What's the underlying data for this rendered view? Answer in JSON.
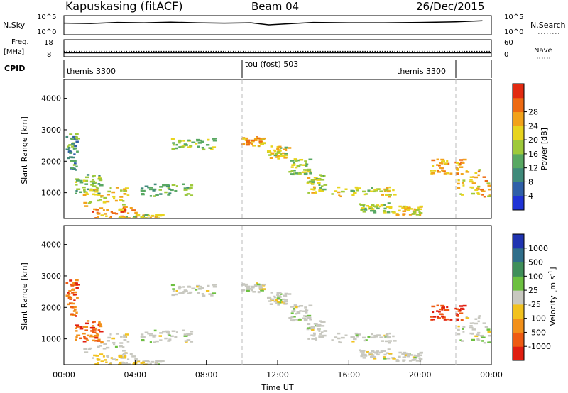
{
  "header": {
    "station": "Kapuskasing (fitACF)",
    "beam": "Beam 04",
    "date": "26/Dec/2015"
  },
  "noise_panel": {
    "left_label": "N.Sky",
    "left_top_tick": "10^5",
    "left_bottom_tick": "10^0",
    "right_top_tick": "10^5",
    "right_bottom_tick": "10^0",
    "right_label": "N.Search"
  },
  "freq_panel": {
    "left_label_1": "Freq.",
    "left_label_2": "[MHz]",
    "left_top_tick": "18",
    "left_bottom_tick": "8",
    "right_top_tick": "60",
    "right_bottom_tick": "0",
    "right_label": "Nave"
  },
  "cpid_panel": {
    "label": "CPID",
    "segments": [
      {
        "label": "themis 3300",
        "start_hour": 0.0
      },
      {
        "label": "tou (fost) 503",
        "start_hour": 10.0
      },
      {
        "label": "themis 3300",
        "start_hour": 22.0
      }
    ]
  },
  "range_panels": {
    "ylabel": "Slant Range [km]",
    "yticks": [
      "1000",
      "2000",
      "3000",
      "4000"
    ],
    "xticks": [
      "00:00",
      "04:00",
      "08:00",
      "12:00",
      "16:00",
      "20:00",
      "00:00"
    ],
    "xlabel": "Time UT"
  },
  "power_scale": {
    "label": "Power [dB]",
    "ticks": [
      "4",
      "8",
      "12",
      "16",
      "20",
      "24",
      "28"
    ],
    "colors": [
      "#1f33d6",
      "#2f5fa8",
      "#3f8a7a",
      "#58a862",
      "#9ec93a",
      "#e8d41e",
      "#f2a21a",
      "#ee6a12",
      "#e22a10"
    ]
  },
  "velocity_scale": {
    "label": "Velocity [m s^-1]",
    "ticks": [
      "1000",
      "500",
      "100",
      "25",
      "-25",
      "-100",
      "-500",
      "-1000"
    ],
    "colors": [
      "#1f33b0",
      "#2f6e8a",
      "#3f8f5a",
      "#6cc040",
      "#c8c8c0",
      "#f2c21e",
      "#f2901a",
      "#ee5a12",
      "#e01e10"
    ]
  },
  "chart_data": {
    "type": "heatmap",
    "x_unit": "hours UT",
    "xlim": [
      0,
      24
    ],
    "ylim": [
      180,
      4600
    ],
    "y_unit": "km",
    "noise_sky_series": {
      "x": [
        0.0,
        1.5,
        3.0,
        4.5,
        6.0,
        7.5,
        9.0,
        10.5,
        11.5,
        12.5,
        14.0,
        16.0,
        18.0,
        20.0,
        22.0,
        23.5
      ],
      "log_values": [
        3.2,
        3.1,
        3.4,
        3.3,
        3.5,
        3.3,
        3.2,
        3.3,
        2.7,
        3.0,
        3.4,
        3.3,
        3.3,
        3.4,
        3.6,
        3.9
      ]
    },
    "frequency_mhz": 10.4,
    "nave": 19,
    "power_blobs": [
      {
        "t0": 0.1,
        "t1": 0.7,
        "r0": 1600,
        "r1": 2900,
        "p": 10
      },
      {
        "t0": 0.6,
        "t1": 2.0,
        "r0": 1000,
        "r1": 1600,
        "p": 14
      },
      {
        "t0": 1.0,
        "t1": 3.7,
        "r0": 600,
        "r1": 1200,
        "p": 20
      },
      {
        "t0": 1.5,
        "t1": 4.0,
        "r0": 200,
        "r1": 600,
        "p": 26
      },
      {
        "t0": 3.0,
        "t1": 5.5,
        "r0": 180,
        "r1": 340,
        "p": 18
      },
      {
        "t0": 4.2,
        "t1": 7.2,
        "r0": 900,
        "r1": 1300,
        "p": 12
      },
      {
        "t0": 6.0,
        "t1": 8.4,
        "r0": 2400,
        "r1": 2750,
        "p": 16
      },
      {
        "t0": 9.8,
        "t1": 11.2,
        "r0": 2500,
        "r1": 2800,
        "p": 22
      },
      {
        "t0": 11.4,
        "t1": 12.6,
        "r0": 2100,
        "r1": 2500,
        "p": 18
      },
      {
        "t0": 12.6,
        "t1": 13.8,
        "r0": 1600,
        "r1": 2100,
        "p": 16
      },
      {
        "t0": 13.6,
        "t1": 14.6,
        "r0": 1000,
        "r1": 1600,
        "p": 18
      },
      {
        "t0": 15.0,
        "t1": 18.5,
        "r0": 900,
        "r1": 1200,
        "p": 18
      },
      {
        "t0": 16.5,
        "t1": 18.6,
        "r0": 400,
        "r1": 700,
        "p": 16
      },
      {
        "t0": 18.6,
        "t1": 20.0,
        "r0": 300,
        "r1": 600,
        "p": 22
      },
      {
        "t0": 20.5,
        "t1": 22.5,
        "r0": 1600,
        "r1": 2100,
        "p": 24
      },
      {
        "t0": 22.0,
        "t1": 24.0,
        "r0": 900,
        "r1": 1800,
        "p": 22
      }
    ]
  }
}
